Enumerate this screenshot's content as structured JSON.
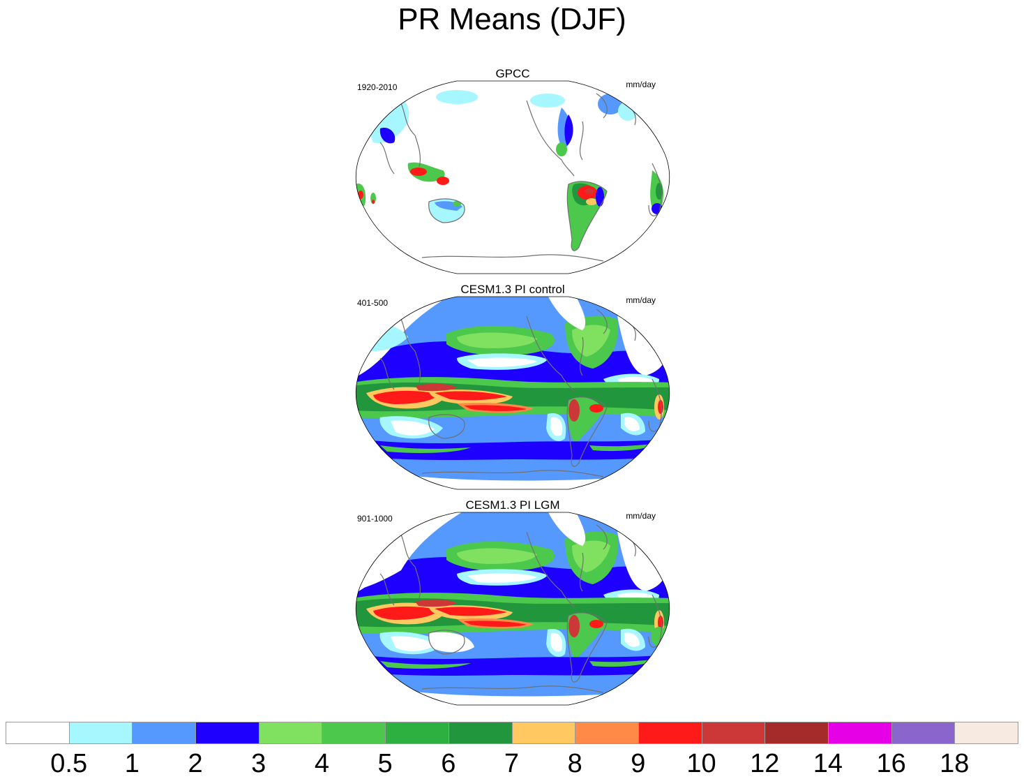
{
  "title": "PR Means (DJF)",
  "panels": [
    {
      "title": "GPCC",
      "left_label": "1920-2010",
      "right_label": "mm/day",
      "pattern": "obs"
    },
    {
      "title": "CESM1.3 PI control",
      "left_label": "401-500",
      "right_label": "mm/day",
      "pattern": "model"
    },
    {
      "title": "CESM1.3 PI LGM",
      "left_label": "901-1000",
      "right_label": "mm/day",
      "pattern": "lgm"
    }
  ],
  "colorbar": {
    "colors": [
      "#ffffff",
      "#a6f7ff",
      "#5599ff",
      "#1e00ff",
      "#80e060",
      "#4cc84c",
      "#2eb040",
      "#21963c",
      "#ffc860",
      "#ff8a48",
      "#ff1a1a",
      "#cc3838",
      "#a52a2a",
      "#e600e6",
      "#8a66cc",
      "#f7ebe1"
    ],
    "labels": [
      "0.5",
      "1",
      "2",
      "3",
      "4",
      "5",
      "6",
      "7",
      "8",
      "9",
      "10",
      "12",
      "14",
      "16",
      "18"
    ]
  },
  "palette": {
    "white": "#ffffff",
    "lightcyan": "#a6f7ff",
    "skyblue": "#5599ff",
    "blue": "#1e00ff",
    "lightgreen": "#80e060",
    "green": "#4cc84c",
    "midgreen": "#2eb040",
    "darkgreen": "#21963c",
    "orange": "#ffc860",
    "darkorange": "#ff8a48",
    "red": "#ff1a1a",
    "darkred": "#cc3838",
    "brown": "#a52a2a",
    "coast": "#707070"
  }
}
